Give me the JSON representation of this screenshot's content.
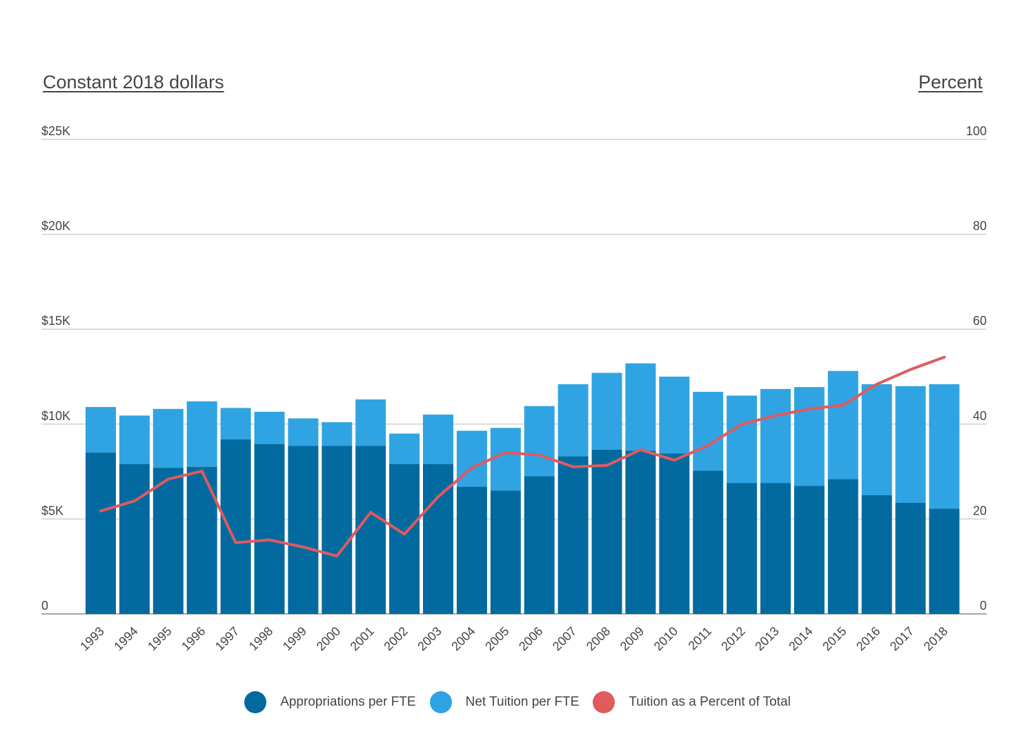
{
  "chart_data": {
    "type": "bar",
    "stacked": true,
    "categories": [
      "1993",
      "1994",
      "1995",
      "1996",
      "1997",
      "1998",
      "1999",
      "2000",
      "2001",
      "2002",
      "2003",
      "2004",
      "2005",
      "2006",
      "2007",
      "2008",
      "2009",
      "2010",
      "2011",
      "2012",
      "2013",
      "2014",
      "2015",
      "2016",
      "2017",
      "2018"
    ],
    "left_axis": {
      "title": "Constant 2018 dollars",
      "ylim": [
        0,
        25000
      ],
      "ticks": [
        0,
        5000,
        10000,
        15000,
        20000,
        25000
      ],
      "tick_labels": [
        "0",
        "$5K",
        "$10K",
        "$15K",
        "$20K",
        "$25K"
      ]
    },
    "right_axis": {
      "title": "Percent",
      "ylim": [
        0,
        100
      ],
      "ticks": [
        0,
        20,
        40,
        60,
        80,
        100
      ],
      "tick_labels": [
        "0",
        "20",
        "40",
        "60",
        "80",
        "100"
      ]
    },
    "series": [
      {
        "name": "Appropriations per FTE",
        "type": "bar",
        "axis": "left",
        "color": "#036aa0",
        "values": [
          8500,
          7900,
          7700,
          7750,
          9200,
          8950,
          8850,
          8850,
          8850,
          7900,
          7900,
          6700,
          6500,
          7250,
          8300,
          8650,
          8600,
          8450,
          7550,
          6900,
          6900,
          6750,
          7100,
          6250,
          5850,
          5550
        ]
      },
      {
        "name": "Net Tuition per FTE",
        "type": "bar",
        "axis": "left",
        "color": "#30a4e3",
        "values": [
          2400,
          2550,
          3100,
          3450,
          1650,
          1700,
          1450,
          1250,
          2450,
          1600,
          2600,
          2950,
          3300,
          3700,
          3800,
          4050,
          4600,
          4050,
          4150,
          4600,
          4950,
          5200,
          5700,
          5850,
          6150,
          6550
        ]
      },
      {
        "name": "Tuition as a Percent of Total",
        "type": "line",
        "axis": "right",
        "color": "#e05a5e",
        "values": [
          21.7,
          23.8,
          28.4,
          30.1,
          15.0,
          15.6,
          14.1,
          12.2,
          21.4,
          16.8,
          24.7,
          30.8,
          34.0,
          33.5,
          31.0,
          31.3,
          34.6,
          32.4,
          35.5,
          40.0,
          41.8,
          43.2,
          44.0,
          48.4,
          51.5,
          54.1
        ]
      }
    ],
    "grid": true,
    "legend_position": "bottom-center"
  }
}
